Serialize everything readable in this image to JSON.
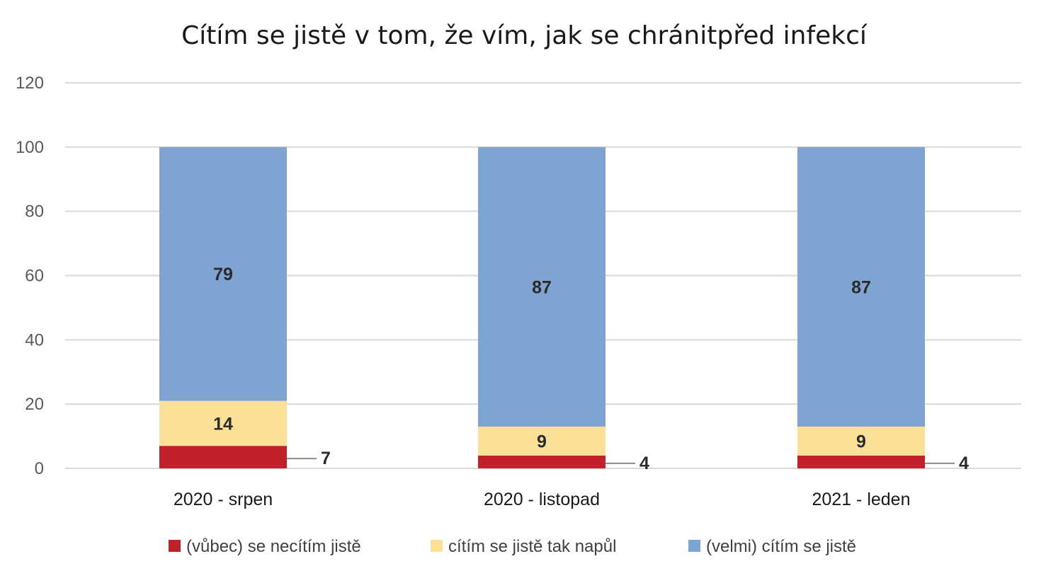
{
  "chart_data": {
    "type": "bar",
    "stacked": true,
    "title": "Cítím se jistě v tom, že vím, jak se chránitpřed infekcí",
    "categories": [
      "2020 - srpen",
      "2020 - listopad",
      "2021 - leden"
    ],
    "series": [
      {
        "name": "(vůbec) se necítím jistě",
        "values": [
          7,
          4,
          4
        ],
        "color": "#c0202a",
        "label_position": "outside-right"
      },
      {
        "name": "cítím se jistě tak  napůl",
        "values": [
          14,
          9,
          9
        ],
        "color": "#fbe197",
        "label_position": "center"
      },
      {
        "name": "(velmi) cítím se jistě",
        "values": [
          79,
          87,
          87
        ],
        "color": "#7fa3d3",
        "label_position": "center"
      }
    ],
    "ylim": [
      0,
      120
    ],
    "yticks": [
      0,
      20,
      40,
      60,
      80,
      100,
      120
    ],
    "grid": true,
    "legend": "bottom"
  }
}
